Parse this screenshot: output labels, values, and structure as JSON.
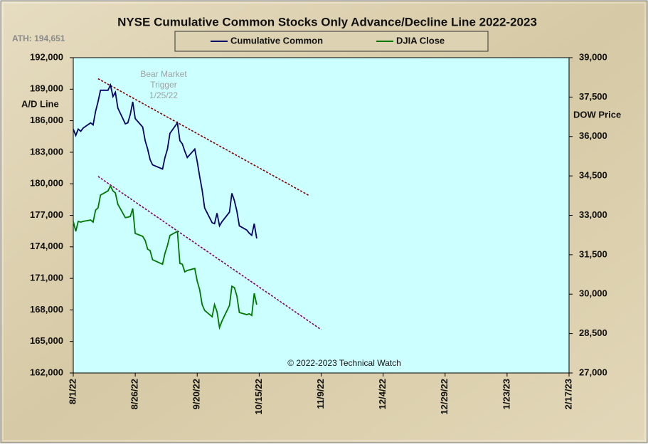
{
  "chart_data": {
    "type": "line",
    "title": "NYSE Cumulative  Common Stocks Only Advance/Decline  Line 2022-2023",
    "ath_label": "ATH: 194,651",
    "ylabel": "A/D Line",
    "y2label": "DOW  Price",
    "copyright": "© 2022-2023  Technical Watch",
    "annotation": [
      "Bear Market",
      "Trigger",
      "1/25/22"
    ],
    "x": [
      "8/1/22",
      "8/2/22",
      "8/3/22",
      "8/4/22",
      "8/5/22",
      "8/8/22",
      "8/9/22",
      "8/10/22",
      "8/11/22",
      "8/12/22",
      "8/15/22",
      "8/16/22",
      "8/17/22",
      "8/18/22",
      "8/19/22",
      "8/22/22",
      "8/23/22",
      "8/24/22",
      "8/25/22",
      "8/26/22",
      "8/29/22",
      "8/30/22",
      "8/31/22",
      "9/1/22",
      "9/2/22",
      "9/6/22",
      "9/7/22",
      "9/8/22",
      "9/9/22",
      "9/12/22",
      "9/13/22",
      "9/14/22",
      "9/15/22",
      "9/16/22",
      "9/19/22",
      "9/20/22",
      "9/21/22",
      "9/22/22",
      "9/23/22",
      "9/26/22",
      "9/27/22",
      "9/28/22",
      "9/29/22",
      "9/30/22",
      "10/3/22",
      "10/4/22",
      "10/5/22",
      "10/6/22",
      "10/7/22",
      "10/10/22",
      "10/11/22",
      "10/12/22",
      "10/13/22",
      "10/14/22"
    ],
    "series": [
      {
        "name": "Cumulative Common",
        "color": "#000066",
        "axis": "y",
        "values": [
          185200,
          184600,
          185200,
          185000,
          185300,
          185800,
          185600,
          186900,
          187800,
          188900,
          188900,
          189400,
          188300,
          188700,
          187200,
          185700,
          185800,
          186600,
          187800,
          186200,
          185400,
          184100,
          183300,
          182300,
          181800,
          181400,
          182500,
          183300,
          184800,
          185800,
          184100,
          183800,
          183100,
          182500,
          183300,
          182100,
          180700,
          179400,
          177700,
          176300,
          176200,
          177200,
          176000,
          176400,
          177300,
          179100,
          178400,
          177400,
          176000,
          175600,
          175300,
          175100,
          176200,
          174800
        ]
      },
      {
        "name": "DJIA Close",
        "color": "#007700",
        "axis": "y2",
        "values": [
          32770,
          32390,
          32770,
          32740,
          32770,
          32820,
          32740,
          33200,
          33280,
          33770,
          33930,
          34120,
          33930,
          33850,
          33420,
          32910,
          32930,
          32960,
          33260,
          32310,
          32200,
          32040,
          31710,
          31660,
          31310,
          31140,
          31550,
          31850,
          32230,
          32390,
          31170,
          31140,
          30850,
          30900,
          30980,
          30490,
          30170,
          29600,
          29380,
          29140,
          29600,
          29330,
          28730,
          28980,
          29570,
          30300,
          30250,
          29930,
          29300,
          29220,
          29250,
          29190,
          30030,
          29600
        ]
      }
    ],
    "trendlines": [
      {
        "axis": "y",
        "color": "#800000",
        "x": [
          "8/11/22",
          "11/4/22"
        ],
        "values": [
          190000,
          178900
        ]
      },
      {
        "axis": "y2",
        "color": "#800060",
        "x": [
          "8/11/22",
          "11/9/22"
        ],
        "values": [
          34480,
          28650
        ]
      }
    ],
    "xlim": [
      "8/1/22",
      "2/17/23"
    ],
    "xticks": [
      "8/1/22",
      "8/26/22",
      "9/20/22",
      "10/15/22",
      "11/9/22",
      "12/4/22",
      "12/29/22",
      "1/23/23",
      "2/17/23"
    ],
    "ylim": [
      162000,
      192000
    ],
    "yticks": [
      {
        "value": 162000,
        "label": "162,000"
      },
      {
        "value": 165000,
        "label": "165,000"
      },
      {
        "value": 168000,
        "label": "168,000"
      },
      {
        "value": 171000,
        "label": "171,000"
      },
      {
        "value": 174000,
        "label": "174,000"
      },
      {
        "value": 177000,
        "label": "177,000"
      },
      {
        "value": 180000,
        "label": "180,000"
      },
      {
        "value": 183000,
        "label": "183,000"
      },
      {
        "value": 186000,
        "label": "186,000"
      },
      {
        "value": 189000,
        "label": "189,000"
      },
      {
        "value": 192000,
        "label": "192,000"
      }
    ],
    "y2lim": [
      27000,
      39000
    ],
    "y2ticks": [
      {
        "value": 27000,
        "label": "27,000"
      },
      {
        "value": 28500,
        "label": "28,500"
      },
      {
        "value": 30000,
        "label": "30,000"
      },
      {
        "value": 31500,
        "label": "31,500"
      },
      {
        "value": 33000,
        "label": "33,000"
      },
      {
        "value": 34500,
        "label": "34,500"
      },
      {
        "value": 36000,
        "label": "36,000"
      },
      {
        "value": 37500,
        "label": "37,500"
      },
      {
        "value": 39000,
        "label": "39,000"
      }
    ],
    "grid": false,
    "plot_background": "#ccffff"
  }
}
